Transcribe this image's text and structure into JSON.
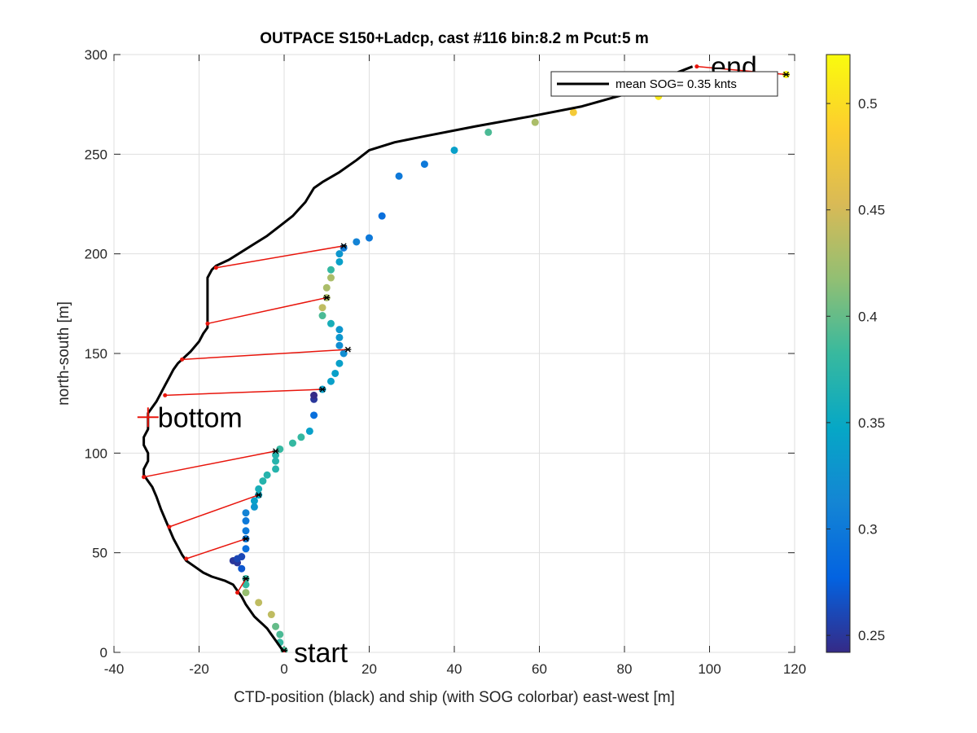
{
  "chart_data": {
    "type": "scatter",
    "title": "OUTPACE S150+Ladcp, cast #116 bin:8.2 m  Pcut:5 m",
    "xlabel": "CTD-position (black) and ship (with SOG colorbar) east-west [m]",
    "ylabel": "north-south [m]",
    "xlim": [
      -40,
      120
    ],
    "ylim": [
      0,
      300
    ],
    "xticks": [
      "-40",
      "-20",
      "0",
      "20",
      "40",
      "60",
      "80",
      "100",
      "120"
    ],
    "yticks": [
      "0",
      "50",
      "100",
      "150",
      "200",
      "250",
      "300"
    ],
    "grid": true,
    "legend": {
      "label": "mean SOG=  0.35 knts",
      "placement": "top-right"
    },
    "colorbar": {
      "clim": [
        0.242,
        0.523
      ],
      "ticks": [
        "0.25",
        "0.3",
        "0.35",
        "0.4",
        "0.45",
        "0.5"
      ],
      "colormap": [
        "#352a87",
        "#0363e1",
        "#1485d4",
        "#06a7c6",
        "#38b99e",
        "#92bf73",
        "#d9ba56",
        "#fcce2e",
        "#f9fb0e"
      ]
    },
    "annotations": [
      {
        "text": "start",
        "x": 0,
        "y": 0
      },
      {
        "text": "bottom",
        "x": -32,
        "y": 118
      },
      {
        "text": "end",
        "x": 98,
        "y": 294
      }
    ],
    "ctd_track": {
      "name": "CTD-position",
      "color": "#000000",
      "points": [
        [
          0,
          0
        ],
        [
          -1,
          3
        ],
        [
          -2,
          6
        ],
        [
          -3,
          9
        ],
        [
          -4,
          12
        ],
        [
          -5,
          14
        ],
        [
          -6,
          16
        ],
        [
          -7,
          18
        ],
        [
          -8,
          21
        ],
        [
          -9,
          24
        ],
        [
          -10,
          28
        ],
        [
          -11,
          31
        ],
        [
          -12,
          34
        ],
        [
          -14,
          36
        ],
        [
          -17,
          38
        ],
        [
          -19,
          40
        ],
        [
          -21,
          43
        ],
        [
          -23,
          46
        ],
        [
          -24,
          49
        ],
        [
          -25,
          53
        ],
        [
          -26,
          57
        ],
        [
          -27,
          62
        ],
        [
          -28,
          67
        ],
        [
          -29,
          72
        ],
        [
          -30,
          78
        ],
        [
          -31,
          83
        ],
        [
          -32,
          86
        ],
        [
          -33,
          89
        ],
        [
          -33,
          92
        ],
        [
          -32,
          96
        ],
        [
          -32,
          100
        ],
        [
          -33,
          104
        ],
        [
          -33,
          108
        ],
        [
          -32,
          112
        ],
        [
          -32,
          116
        ],
        [
          -32,
          120
        ],
        [
          -31,
          123
        ],
        [
          -30,
          126
        ],
        [
          -29,
          130
        ],
        [
          -28,
          134
        ],
        [
          -27,
          138
        ],
        [
          -26,
          142
        ],
        [
          -25,
          145
        ],
        [
          -24,
          147
        ],
        [
          -22,
          151
        ],
        [
          -20,
          156
        ],
        [
          -19,
          160
        ],
        [
          -18,
          163
        ],
        [
          -18,
          168
        ],
        [
          -18,
          173
        ],
        [
          -18,
          178
        ],
        [
          -18,
          183
        ],
        [
          -18,
          188
        ],
        [
          -17,
          192
        ],
        [
          -16,
          194
        ],
        [
          -13,
          197
        ],
        [
          -10,
          201
        ],
        [
          -7,
          205
        ],
        [
          -4,
          209
        ],
        [
          -1,
          214
        ],
        [
          2,
          219
        ],
        [
          5,
          226
        ],
        [
          7,
          233
        ],
        [
          9,
          236
        ],
        [
          13,
          241
        ],
        [
          17,
          247
        ],
        [
          20,
          252
        ],
        [
          26,
          256
        ],
        [
          33,
          259
        ],
        [
          45,
          264
        ],
        [
          58,
          269
        ],
        [
          70,
          274
        ],
        [
          80,
          280
        ],
        [
          90,
          289
        ],
        [
          96,
          294
        ]
      ]
    },
    "ship_points": {
      "name": "ship",
      "points": [
        [
          0,
          1,
          0.39
        ],
        [
          -1,
          5,
          0.38
        ],
        [
          -1,
          9,
          0.39
        ],
        [
          -2,
          13,
          0.4
        ],
        [
          -3,
          19,
          0.44
        ],
        [
          -6,
          25,
          0.44
        ],
        [
          -9,
          30,
          0.42
        ],
        [
          -9,
          34,
          0.38
        ],
        [
          -9,
          37,
          0.38
        ],
        [
          -10,
          42,
          0.27
        ],
        [
          -11,
          45,
          0.25
        ],
        [
          -12,
          46,
          0.25
        ],
        [
          -11,
          47,
          0.26
        ],
        [
          -10,
          48,
          0.26
        ],
        [
          -9,
          52,
          0.29
        ],
        [
          -9,
          57,
          0.3
        ],
        [
          -9,
          61,
          0.3
        ],
        [
          -9,
          66,
          0.3
        ],
        [
          -9,
          70,
          0.31
        ],
        [
          -7,
          73,
          0.33
        ],
        [
          -7,
          76,
          0.34
        ],
        [
          -6,
          79,
          0.35
        ],
        [
          -6,
          82,
          0.36
        ],
        [
          -5,
          86,
          0.37
        ],
        [
          -4,
          89,
          0.37
        ],
        [
          -2,
          92,
          0.37
        ],
        [
          -2,
          96,
          0.37
        ],
        [
          -2,
          99,
          0.37
        ],
        [
          -1,
          102,
          0.38
        ],
        [
          2,
          105,
          0.38
        ],
        [
          4,
          108,
          0.38
        ],
        [
          6,
          111,
          0.34
        ],
        [
          7,
          119,
          0.29
        ],
        [
          7,
          127,
          0.25
        ],
        [
          7,
          129,
          0.24
        ],
        [
          9,
          132,
          0.34
        ],
        [
          11,
          136,
          0.34
        ],
        [
          12,
          140,
          0.34
        ],
        [
          13,
          145,
          0.34
        ],
        [
          14,
          150,
          0.32
        ],
        [
          13,
          154,
          0.32
        ],
        [
          13,
          158,
          0.33
        ],
        [
          13,
          162,
          0.33
        ],
        [
          11,
          165,
          0.36
        ],
        [
          9,
          169,
          0.39
        ],
        [
          9,
          173,
          0.44
        ],
        [
          10,
          178,
          0.43
        ],
        [
          10,
          183,
          0.43
        ],
        [
          11,
          188,
          0.43
        ],
        [
          11,
          192,
          0.38
        ],
        [
          13,
          196,
          0.34
        ],
        [
          13,
          200,
          0.33
        ],
        [
          14,
          203,
          0.3
        ],
        [
          17,
          206,
          0.31
        ],
        [
          20,
          208,
          0.3
        ],
        [
          23,
          219,
          0.29
        ],
        [
          27,
          239,
          0.3
        ],
        [
          33,
          245,
          0.3
        ],
        [
          40,
          252,
          0.34
        ],
        [
          48,
          261,
          0.39
        ],
        [
          59,
          266,
          0.43
        ],
        [
          68,
          271,
          0.48
        ],
        [
          88,
          279,
          0.51
        ],
        [
          118,
          290,
          0.52
        ]
      ]
    },
    "ctd_pairs": [
      [
        [
          0,
          0
        ],
        [
          0,
          1
        ]
      ],
      [
        [
          -11,
          30
        ],
        [
          -9,
          37
        ]
      ],
      [
        [
          -23,
          47
        ],
        [
          -9,
          57
        ]
      ],
      [
        [
          -27,
          63
        ],
        [
          -6,
          79
        ]
      ],
      [
        [
          -33,
          88
        ],
        [
          -2,
          101
        ]
      ],
      [
        [
          -28,
          129
        ],
        [
          9,
          132
        ]
      ],
      [
        [
          -24,
          147
        ],
        [
          15,
          152
        ]
      ],
      [
        [
          -18,
          165
        ],
        [
          10,
          178
        ]
      ],
      [
        [
          -16,
          193
        ],
        [
          14,
          204
        ]
      ],
      [
        [
          97,
          294
        ],
        [
          118,
          290
        ]
      ]
    ]
  }
}
